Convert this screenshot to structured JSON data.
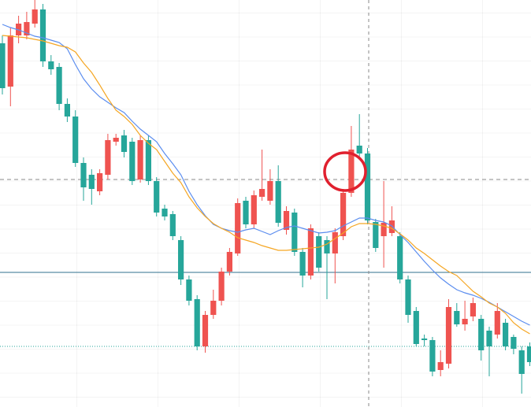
{
  "chart_data": {
    "type": "candlestick",
    "categories": [
      null,
      null,
      null,
      null,
      null,
      null,
      null,
      null,
      null,
      null,
      null,
      null,
      null,
      null,
      null,
      null,
      null,
      null,
      null,
      null,
      null,
      null,
      null,
      null,
      null,
      null,
      null,
      null,
      null,
      null,
      null,
      null,
      null,
      null,
      null,
      null,
      null,
      null,
      null,
      null,
      null,
      null,
      null,
      null,
      null,
      null,
      null,
      null,
      null,
      null,
      null,
      null,
      null,
      null,
      null,
      null,
      null,
      null,
      null,
      null,
      null,
      null,
      null,
      null,
      null,
      null
    ],
    "open": [
      462,
      407,
      472,
      472,
      487,
      505,
      439,
      432,
      385,
      369,
      310,
      295,
      274,
      295,
      337,
      345,
      337,
      289,
      339,
      287,
      252,
      245,
      212,
      162,
      137,
      77,
      117,
      135,
      172,
      195,
      262,
      232,
      267,
      262,
      287,
      225,
      247,
      197,
      167,
      217,
      212,
      195,
      217,
      272,
      332,
      322,
      235,
      217,
      221,
      217,
      162,
      122,
      87,
      85,
      47,
      55,
      122,
      105,
      115,
      112,
      97,
      92,
      107,
      89,
      72,
      77
    ],
    "high": [
      472,
      482,
      497,
      502,
      517,
      512,
      447,
      437,
      392,
      377,
      317,
      302,
      302,
      347,
      347,
      352,
      342,
      345,
      345,
      292,
      257,
      249,
      217,
      167,
      142,
      122,
      149,
      177,
      202,
      265,
      267,
      275,
      327,
      302,
      307,
      255,
      252,
      202,
      232,
      222,
      217,
      227,
      277,
      357,
      372,
      329,
      239,
      287,
      255,
      222,
      167,
      127,
      92,
      89,
      72,
      137,
      132,
      135,
      139,
      117,
      102,
      132,
      112,
      92,
      77,
      82
    ],
    "low": [
      397,
      382,
      462,
      467,
      482,
      432,
      422,
      377,
      362,
      305,
      262,
      257,
      269,
      289,
      332,
      317,
      282,
      285,
      282,
      242,
      237,
      212,
      155,
      129,
      72,
      69,
      112,
      129,
      167,
      192,
      227,
      227,
      262,
      257,
      229,
      219,
      192,
      152,
      162,
      172,
      137,
      157,
      212,
      267,
      317,
      232,
      197,
      177,
      217,
      157,
      107,
      77,
      77,
      39,
      39,
      49,
      102,
      97,
      109,
      59,
      39,
      87,
      72,
      67,
      17,
      52
    ],
    "close": [
      405,
      472,
      487,
      489,
      505,
      439,
      429,
      385,
      369,
      310,
      279,
      277,
      297,
      339,
      342,
      324,
      287,
      339,
      287,
      247,
      242,
      217,
      162,
      135,
      77,
      117,
      135,
      172,
      197,
      259,
      232,
      269,
      277,
      287,
      234,
      249,
      197,
      167,
      227,
      177,
      195,
      222,
      272,
      327,
      322,
      237,
      202,
      234,
      237,
      162,
      117,
      80,
      85,
      45,
      57,
      127,
      105,
      112,
      132,
      72,
      77,
      122,
      77,
      74,
      42,
      57
    ],
    "up_color": "#ef5350",
    "down_color": "#26a69a",
    "series": [
      {
        "color": "#5b8def",
        "values": [
          486,
          482,
          479,
          475,
          471,
          469,
          466,
          463,
          455,
          435,
          417,
          404,
          394,
          387,
          380,
          374,
          363,
          353,
          345,
          337,
          322,
          309,
          295,
          274,
          257,
          243,
          232,
          227,
          224,
          222,
          225,
          227,
          223,
          219,
          224,
          228,
          230,
          227,
          224,
          221,
          222,
          224,
          230,
          235,
          240,
          240,
          237,
          235,
          230,
          219,
          209,
          197,
          185,
          174,
          164,
          156,
          149,
          145,
          142,
          138,
          133,
          127,
          121,
          115,
          109,
          104
        ]
      },
      {
        "color": "#f5a623",
        "values": [
          472,
          471,
          470,
          469,
          467,
          465,
          462,
          459,
          457,
          451,
          437,
          425,
          409,
          392,
          377,
          369,
          359,
          345,
          335,
          327,
          312,
          297,
          285,
          267,
          253,
          242,
          233,
          227,
          222,
          215,
          212,
          209,
          205,
          202,
          199,
          199,
          200,
          201,
          202,
          203,
          207,
          214,
          221,
          229,
          233,
          233,
          232,
          230,
          227,
          220,
          212,
          202,
          195,
          187,
          179,
          172,
          167,
          157,
          147,
          140,
          132,
          127,
          119,
          107,
          99,
          93
        ]
      }
    ],
    "price_lines": [
      {
        "value": 171,
        "color": "#2f6f8e",
        "style": "solid"
      },
      {
        "value": 77,
        "color": "#26a69a",
        "style": "dotted"
      },
      {
        "value": 289,
        "color": "#888888",
        "style": "dashed"
      }
    ],
    "ylim": [
      0,
      517
    ]
  }
}
